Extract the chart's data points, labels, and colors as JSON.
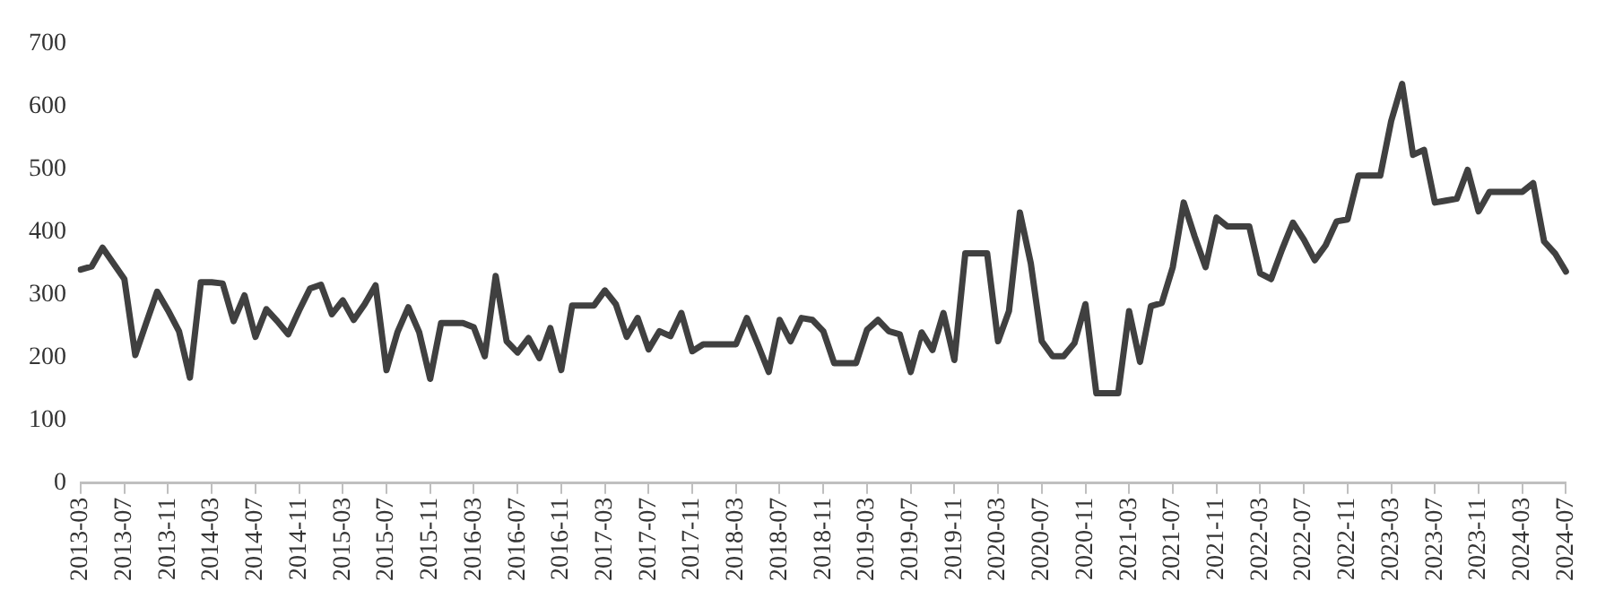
{
  "chart_data": {
    "type": "line",
    "categories": [
      "2013-03",
      null,
      null,
      null,
      "2013-07",
      null,
      null,
      null,
      "2013-11",
      null,
      null,
      null,
      "2014-03",
      null,
      null,
      null,
      "2014-07",
      null,
      null,
      null,
      "2014-11",
      null,
      null,
      null,
      "2015-03",
      null,
      null,
      null,
      "2015-07",
      null,
      null,
      null,
      "2015-11",
      null,
      null,
      null,
      "2016-03",
      null,
      null,
      null,
      "2016-07",
      null,
      null,
      null,
      "2016-11",
      null,
      null,
      null,
      "2017-03",
      null,
      null,
      null,
      "2017-07",
      null,
      null,
      null,
      "2017-11",
      null,
      null,
      null,
      "2018-03",
      null,
      null,
      null,
      "2018-07",
      null,
      null,
      null,
      "2018-11",
      null,
      null,
      null,
      "2019-03",
      null,
      null,
      null,
      "2019-07",
      null,
      null,
      null,
      "2019-11",
      null,
      null,
      null,
      "2020-03",
      null,
      null,
      null,
      "2020-07",
      null,
      null,
      null,
      "2020-11",
      null,
      null,
      null,
      "2021-03",
      null,
      null,
      null,
      "2021-07",
      null,
      null,
      null,
      "2021-11",
      null,
      null,
      null,
      "2022-03",
      null,
      null,
      null,
      "2022-07",
      null,
      null,
      null,
      "2022-11",
      null,
      null,
      null,
      "2023-03",
      null,
      null,
      null,
      "2023-07",
      null,
      null,
      null,
      "2023-11",
      null,
      null,
      null,
      "2024-03",
      null,
      null,
      null,
      "2024-07"
    ],
    "series": [
      {
        "color": "#404040",
        "values": [
          340,
          345,
          375,
          350,
          325,
          204,
          255,
          305,
          275,
          242,
          168,
          320,
          320,
          318,
          258,
          299,
          233,
          277,
          258,
          237,
          275,
          310,
          316,
          269,
          291,
          260,
          285,
          315,
          180,
          240,
          280,
          240,
          166,
          255,
          255,
          255,
          248,
          202,
          330,
          226,
          208,
          231,
          199,
          247,
          180,
          283,
          283,
          283,
          307,
          285,
          233,
          263,
          213,
          242,
          234,
          271,
          210,
          221,
          221,
          221,
          221,
          263,
          221,
          177,
          260,
          226,
          263,
          260,
          242,
          191,
          191,
          191,
          244,
          260,
          242,
          237,
          177,
          240,
          212,
          271,
          196,
          366,
          366,
          366,
          226,
          274,
          431,
          350,
          226,
          202,
          202,
          223,
          285,
          143,
          143,
          143,
          274,
          193,
          282,
          287,
          344,
          447,
          393,
          344,
          423,
          409,
          409,
          409,
          334,
          325,
          372,
          415,
          388,
          355,
          379,
          417,
          420,
          490,
          490,
          490,
          577,
          636,
          523,
          531,
          447,
          450,
          453,
          499,
          433,
          464,
          464,
          464,
          464,
          478,
          385,
          366,
          337
        ]
      }
    ],
    "ylim": [
      0,
      700
    ],
    "yticks": [
      0,
      100,
      200,
      300,
      400,
      500,
      600,
      700
    ],
    "grid": false,
    "legend": false,
    "marker": "none",
    "line_style": "solid"
  }
}
